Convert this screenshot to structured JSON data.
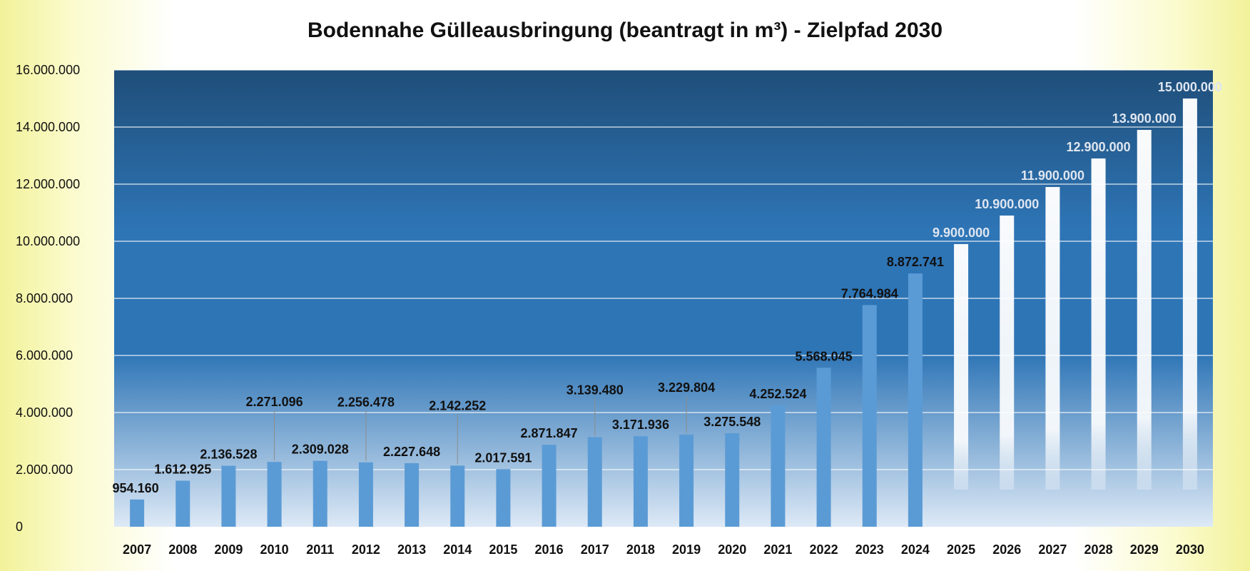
{
  "chart_data": {
    "type": "bar",
    "title": "Bodennahe Gülleausbringung (beantragt in m³) - Zielpfad 2030",
    "xlabel": "",
    "ylabel": "",
    "ylim": [
      0,
      16000000
    ],
    "yticks": [
      0,
      2000000,
      4000000,
      6000000,
      8000000,
      10000000,
      12000000,
      14000000,
      16000000
    ],
    "ytick_labels": [
      "0",
      "2.000.000",
      "4.000.000",
      "6.000.000",
      "8.000.000",
      "10.000.000",
      "12.000.000",
      "14.000.000",
      "16.000.000"
    ],
    "grid": true,
    "categories": [
      "2007",
      "2008",
      "2009",
      "2010",
      "2011",
      "2012",
      "2013",
      "2014",
      "2015",
      "2016",
      "2017",
      "2018",
      "2019",
      "2020",
      "2021",
      "2022",
      "2023",
      "2024",
      "2025",
      "2026",
      "2027",
      "2028",
      "2029",
      "2030"
    ],
    "values": [
      954160,
      1612925,
      2136528,
      2271096,
      2309028,
      2256478,
      2227648,
      2142252,
      2017591,
      2871847,
      3139480,
      3171936,
      3229804,
      3275548,
      4252524,
      5568045,
      7764984,
      8872741,
      9900000,
      10900000,
      11900000,
      12900000,
      13900000,
      15000000
    ],
    "value_labels": [
      "954.160",
      "1.612.925",
      "2.136.528",
      "2.271.096",
      "2.309.028",
      "2.256.478",
      "2.227.648",
      "2.142.252",
      "2.017.591",
      "2.871.847",
      "3.139.480",
      "3.171.936",
      "3.229.804",
      "3.275.548",
      "4.252.524",
      "5.568.045",
      "7.764.984",
      "8.872.741",
      "9.900.000",
      "10.900.000",
      "11.900.000",
      "12.900.000",
      "13.900.000",
      "15.000.000"
    ],
    "series_kind": [
      "actual",
      "actual",
      "actual",
      "actual",
      "actual",
      "actual",
      "actual",
      "actual",
      "actual",
      "actual",
      "actual",
      "actual",
      "actual",
      "actual",
      "actual",
      "actual",
      "actual",
      "actual",
      "target",
      "target",
      "target",
      "target",
      "target",
      "target"
    ],
    "colors": {
      "actual_bar": "#5b9bd5",
      "target_bar": "#ffffff",
      "plot_top": "#1f4e79",
      "plot_mid": "#2e75b6",
      "plot_bottom": "#dde9f6",
      "gridline": "#ffffff",
      "text": "#111111",
      "target_label": "#dfe6f0",
      "leader_line": "#8c8c8c"
    }
  }
}
